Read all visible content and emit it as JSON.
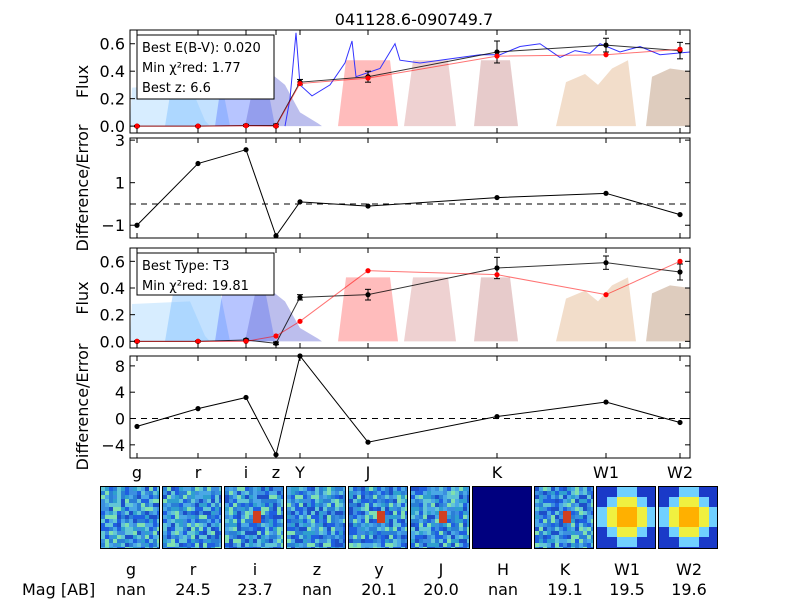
{
  "figure": {
    "title": "041128.6-090749.7"
  },
  "chart_data": [
    {
      "type": "line",
      "panel": "sed-best-fit",
      "ylabel": "Flux",
      "ylim": [
        -0.05,
        0.7
      ],
      "yticks": [
        "0.0",
        "0.2",
        "0.4",
        "0.6"
      ],
      "legend": {
        "placement": "top-left",
        "lines": [
          "Best E(B-V): 0.020",
          "Min χ²red: 1.77",
          "Best z: 6.6"
        ]
      },
      "series": [
        {
          "role": "observed",
          "color": "#000000",
          "x": [
            "g",
            "r",
            "i",
            "z",
            "Y",
            "J",
            "K",
            "W1",
            "W2"
          ],
          "y": [
            0.0,
            0.0,
            0.005,
            0.005,
            0.32,
            0.36,
            0.54,
            0.59,
            0.55
          ],
          "err": [
            0.005,
            0.005,
            0.008,
            0.01,
            0.02,
            0.04,
            0.08,
            0.05,
            0.06
          ]
        },
        {
          "role": "model",
          "color": "#ff0000",
          "x": [
            "g",
            "r",
            "i",
            "z",
            "Y",
            "J",
            "K",
            "W1",
            "W2"
          ],
          "y": [
            0.0,
            0.0,
            0.003,
            0.0,
            0.31,
            0.35,
            0.51,
            0.52,
            0.56
          ]
        }
      ]
    },
    {
      "type": "line",
      "panel": "residuals-best-fit",
      "ylabel": "Difference/Error",
      "ylim": [
        -1.5,
        3.2
      ],
      "yticks": [
        "3",
        "1",
        "−1"
      ],
      "x": [
        "g",
        "r",
        "i",
        "z",
        "Y",
        "J",
        "K",
        "W1",
        "W2"
      ],
      "values": [
        -1.0,
        1.9,
        2.55,
        -1.5,
        0.1,
        -0.1,
        0.3,
        0.5,
        -0.5
      ]
    },
    {
      "type": "line",
      "panel": "sed-brown-dwarf",
      "ylabel": "Flux",
      "ylim": [
        -0.05,
        0.7
      ],
      "yticks": [
        "0.0",
        "0.2",
        "0.4",
        "0.6"
      ],
      "legend": {
        "placement": "top-left",
        "lines": [
          "Best Type: T3",
          "Min χ²red: 19.81"
        ]
      },
      "series": [
        {
          "role": "observed",
          "color": "#000000",
          "x": [
            "g",
            "r",
            "i",
            "z",
            "Y",
            "J",
            "K",
            "W1",
            "W2"
          ],
          "y": [
            0.0,
            0.0,
            0.01,
            -0.015,
            0.33,
            0.35,
            0.55,
            0.59,
            0.52
          ],
          "err": [
            0.005,
            0.005,
            0.008,
            0.01,
            0.02,
            0.04,
            0.08,
            0.05,
            0.06
          ]
        },
        {
          "role": "model",
          "color": "#ff0000",
          "x": [
            "g",
            "r",
            "i",
            "z",
            "Y",
            "J",
            "K",
            "W1",
            "W2"
          ],
          "y": [
            0.0,
            0.0,
            0.0,
            0.04,
            0.15,
            0.53,
            0.5,
            0.35,
            0.6
          ]
        }
      ]
    },
    {
      "type": "line",
      "panel": "residuals-brown-dwarf",
      "ylabel": "Difference/Error",
      "ylim": [
        -6,
        9.5
      ],
      "yticks": [
        "8",
        "4",
        "0",
        "−4"
      ],
      "x": [
        "g",
        "r",
        "i",
        "z",
        "Y",
        "J",
        "K",
        "W1",
        "W2"
      ],
      "values": [
        -1.2,
        1.5,
        3.2,
        -5.5,
        9.5,
        -3.6,
        0.3,
        2.5,
        -0.6
      ]
    }
  ],
  "bands": [
    "g",
    "r",
    "i",
    "z",
    "Y",
    "J",
    "K",
    "W1",
    "W2"
  ],
  "stamps": [
    {
      "band": "g",
      "mag": "nan"
    },
    {
      "band": "r",
      "mag": "24.5"
    },
    {
      "band": "i",
      "mag": "23.7"
    },
    {
      "band": "z",
      "mag": "nan"
    },
    {
      "band": "y",
      "mag": "20.1"
    },
    {
      "band": "J",
      "mag": "20.0"
    },
    {
      "band": "H",
      "mag": "nan"
    },
    {
      "band": "K",
      "mag": "19.1"
    },
    {
      "band": "W1",
      "mag": "19.5"
    },
    {
      "band": "W2",
      "mag": "19.6"
    }
  ],
  "mag_label": "Mag [AB]",
  "colors": {
    "observed": "#000000",
    "model": "#ff0000",
    "spectrum": "#3333ff",
    "stamp_bg": "#2a7fd6",
    "stamp_empty": "#00007f"
  }
}
